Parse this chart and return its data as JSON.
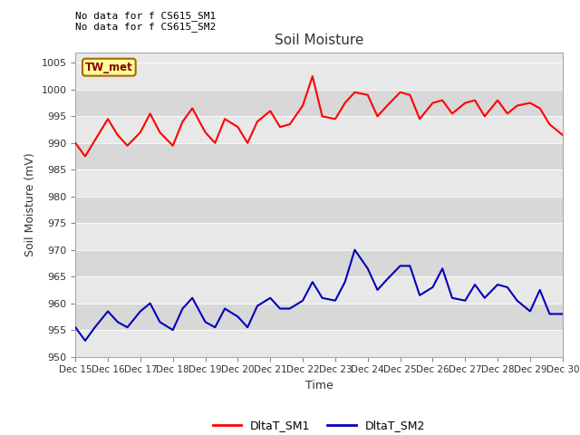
{
  "title": "Soil Moisture",
  "ylabel": "Soil Moisture (mV)",
  "xlabel": "Time",
  "ylim": [
    950,
    1007
  ],
  "yticks": [
    950,
    955,
    960,
    965,
    970,
    975,
    980,
    985,
    990,
    995,
    1000,
    1005
  ],
  "annotations": [
    "No data for f CS615_SM1",
    "No data for f CS615_SM2"
  ],
  "legend_label": "TW_met",
  "series1_color": "#ff0000",
  "series2_color": "#0000bb",
  "series1_label": "DltaT_SM1",
  "series2_label": "DltaT_SM2",
  "xtick_labels": [
    "Dec 15",
    "Dec 16",
    "Dec 17",
    "Dec 18",
    "Dec 19",
    "Dec 20",
    "Dec 21",
    "Dec 22",
    "Dec 23",
    "Dec 24",
    "Dec 25",
    "Dec 26",
    "Dec 27",
    "Dec 28",
    "Dec 29",
    "Dec 30"
  ],
  "sm1_x": [
    0,
    0.3,
    0.6,
    1.0,
    1.3,
    1.6,
    2.0,
    2.3,
    2.6,
    3.0,
    3.3,
    3.6,
    4.0,
    4.3,
    4.6,
    5.0,
    5.3,
    5.6,
    6.0,
    6.3,
    6.6,
    7.0,
    7.3,
    7.6,
    8.0,
    8.3,
    8.6,
    9.0,
    9.3,
    9.6,
    10.0,
    10.3,
    10.6,
    11.0,
    11.3,
    11.6,
    12.0,
    12.3,
    12.6,
    13.0,
    13.3,
    13.6,
    14.0,
    14.3,
    14.6,
    15.0
  ],
  "sm1_y": [
    990,
    987.5,
    990.5,
    994.5,
    991.5,
    989.5,
    992,
    995.5,
    992,
    989.5,
    994,
    996.5,
    992,
    990,
    994.5,
    993,
    990,
    994,
    996,
    993,
    993.5,
    997,
    1002.5,
    995,
    994.5,
    997.5,
    999.5,
    999,
    995,
    997,
    999.5,
    999,
    994.5,
    997.5,
    998,
    995.5,
    997.5,
    998,
    995,
    998,
    995.5,
    997,
    997.5,
    996.5,
    993.5,
    991.5
  ],
  "sm2_x": [
    0,
    0.3,
    0.6,
    1.0,
    1.3,
    1.6,
    2.0,
    2.3,
    2.6,
    3.0,
    3.3,
    3.6,
    4.0,
    4.3,
    4.6,
    5.0,
    5.3,
    5.6,
    6.0,
    6.3,
    6.6,
    7.0,
    7.3,
    7.6,
    8.0,
    8.3,
    8.6,
    9.0,
    9.3,
    9.6,
    10.0,
    10.3,
    10.6,
    11.0,
    11.3,
    11.6,
    12.0,
    12.3,
    12.6,
    13.0,
    13.3,
    13.6,
    14.0,
    14.3,
    14.6,
    15.0
  ],
  "sm2_y": [
    955.5,
    953,
    955.5,
    958.5,
    956.5,
    955.5,
    958.5,
    960,
    956.5,
    955,
    959,
    961,
    956.5,
    955.5,
    959,
    957.5,
    955.5,
    959.5,
    961,
    959,
    959,
    960.5,
    964,
    961,
    960.5,
    964,
    970,
    966.5,
    962.5,
    964.5,
    967,
    967,
    961.5,
    963,
    966.5,
    961,
    960.5,
    963.5,
    961,
    963.5,
    963,
    960.5,
    958.5,
    962.5,
    958,
    958
  ],
  "band_colors": [
    "#e8e8e8",
    "#d8d8d8"
  ]
}
